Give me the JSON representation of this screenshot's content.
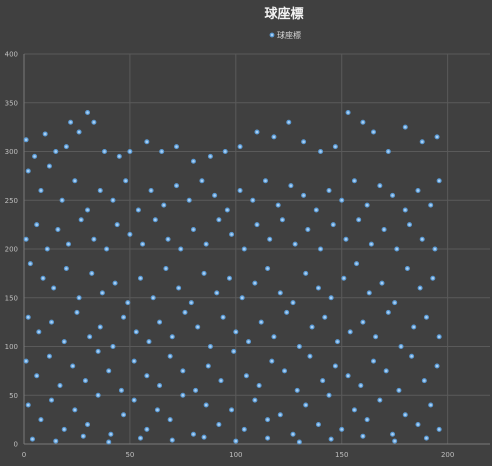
{
  "chart_data": {
    "type": "scatter",
    "title": "球座標",
    "legend": [
      "球座標"
    ],
    "legend_position": "top",
    "xlabel": "",
    "ylabel": "",
    "xlim": [
      0,
      220
    ],
    "ylim": [
      0,
      400
    ],
    "x_ticks": [
      0,
      50,
      100,
      150,
      200
    ],
    "y_ticks": [
      0,
      50,
      100,
      150,
      200,
      250,
      300,
      350,
      400
    ],
    "grid": true,
    "colors": {
      "marker_fill": "#a9d0f5",
      "marker_edge": "#5b9bd5",
      "background": "#404040"
    },
    "series": [
      {
        "name": "球座標",
        "points": [
          [
            1,
            312
          ],
          [
            5,
            295
          ],
          [
            10,
            318
          ],
          [
            15,
            300
          ],
          [
            20,
            305
          ],
          [
            22,
            330
          ],
          [
            26,
            320
          ],
          [
            30,
            340
          ],
          [
            33,
            330
          ],
          [
            38,
            300
          ],
          [
            45,
            295
          ],
          [
            50,
            300
          ],
          [
            58,
            310
          ],
          [
            65,
            300
          ],
          [
            72,
            305
          ],
          [
            80,
            290
          ],
          [
            88,
            295
          ],
          [
            95,
            300
          ],
          [
            102,
            305
          ],
          [
            110,
            320
          ],
          [
            118,
            315
          ],
          [
            125,
            330
          ],
          [
            132,
            310
          ],
          [
            140,
            300
          ],
          [
            147,
            305
          ],
          [
            153,
            340
          ],
          [
            160,
            330
          ],
          [
            165,
            320
          ],
          [
            172,
            300
          ],
          [
            180,
            325
          ],
          [
            188,
            310
          ],
          [
            195,
            315
          ],
          [
            2,
            280
          ],
          [
            8,
            260
          ],
          [
            12,
            285
          ],
          [
            18,
            250
          ],
          [
            24,
            270
          ],
          [
            30,
            240
          ],
          [
            36,
            260
          ],
          [
            42,
            250
          ],
          [
            48,
            270
          ],
          [
            54,
            240
          ],
          [
            60,
            260
          ],
          [
            66,
            245
          ],
          [
            72,
            265
          ],
          [
            78,
            250
          ],
          [
            84,
            270
          ],
          [
            90,
            255
          ],
          [
            96,
            240
          ],
          [
            102,
            260
          ],
          [
            108,
            250
          ],
          [
            114,
            270
          ],
          [
            120,
            245
          ],
          [
            126,
            265
          ],
          [
            132,
            255
          ],
          [
            138,
            240
          ],
          [
            144,
            260
          ],
          [
            150,
            250
          ],
          [
            156,
            270
          ],
          [
            162,
            245
          ],
          [
            168,
            265
          ],
          [
            174,
            255
          ],
          [
            180,
            240
          ],
          [
            186,
            260
          ],
          [
            192,
            245
          ],
          [
            196,
            270
          ],
          [
            1,
            210
          ],
          [
            6,
            225
          ],
          [
            11,
            200
          ],
          [
            16,
            220
          ],
          [
            21,
            205
          ],
          [
            27,
            230
          ],
          [
            33,
            210
          ],
          [
            39,
            200
          ],
          [
            44,
            225
          ],
          [
            50,
            215
          ],
          [
            56,
            205
          ],
          [
            62,
            230
          ],
          [
            68,
            210
          ],
          [
            74,
            200
          ],
          [
            80,
            220
          ],
          [
            86,
            205
          ],
          [
            92,
            230
          ],
          [
            98,
            215
          ],
          [
            104,
            200
          ],
          [
            110,
            225
          ],
          [
            116,
            210
          ],
          [
            122,
            230
          ],
          [
            128,
            205
          ],
          [
            134,
            220
          ],
          [
            140,
            200
          ],
          [
            146,
            225
          ],
          [
            152,
            210
          ],
          [
            158,
            230
          ],
          [
            164,
            205
          ],
          [
            170,
            220
          ],
          [
            176,
            200
          ],
          [
            182,
            225
          ],
          [
            188,
            210
          ],
          [
            194,
            200
          ],
          [
            3,
            185
          ],
          [
            9,
            170
          ],
          [
            14,
            160
          ],
          [
            20,
            180
          ],
          [
            26,
            150
          ],
          [
            32,
            175
          ],
          [
            37,
            155
          ],
          [
            43,
            165
          ],
          [
            49,
            145
          ],
          [
            55,
            170
          ],
          [
            61,
            150
          ],
          [
            67,
            180
          ],
          [
            73,
            160
          ],
          [
            79,
            145
          ],
          [
            85,
            175
          ],
          [
            91,
            155
          ],
          [
            97,
            170
          ],
          [
            103,
            150
          ],
          [
            109,
            165
          ],
          [
            115,
            180
          ],
          [
            121,
            155
          ],
          [
            127,
            145
          ],
          [
            133,
            175
          ],
          [
            139,
            160
          ],
          [
            145,
            150
          ],
          [
            151,
            170
          ],
          [
            157,
            185
          ],
          [
            163,
            155
          ],
          [
            169,
            165
          ],
          [
            175,
            145
          ],
          [
            181,
            180
          ],
          [
            187,
            160
          ],
          [
            193,
            170
          ],
          [
            2,
            130
          ],
          [
            7,
            115
          ],
          [
            13,
            125
          ],
          [
            19,
            105
          ],
          [
            25,
            135
          ],
          [
            31,
            110
          ],
          [
            36,
            120
          ],
          [
            42,
            100
          ],
          [
            47,
            130
          ],
          [
            53,
            115
          ],
          [
            59,
            105
          ],
          [
            64,
            125
          ],
          [
            70,
            110
          ],
          [
            76,
            135
          ],
          [
            82,
            120
          ],
          [
            88,
            100
          ],
          [
            94,
            130
          ],
          [
            100,
            115
          ],
          [
            106,
            105
          ],
          [
            112,
            125
          ],
          [
            118,
            110
          ],
          [
            124,
            135
          ],
          [
            130,
            100
          ],
          [
            136,
            120
          ],
          [
            142,
            130
          ],
          [
            148,
            105
          ],
          [
            154,
            115
          ],
          [
            160,
            125
          ],
          [
            166,
            110
          ],
          [
            172,
            135
          ],
          [
            178,
            100
          ],
          [
            184,
            120
          ],
          [
            190,
            130
          ],
          [
            196,
            110
          ],
          [
            1,
            85
          ],
          [
            6,
            70
          ],
          [
            12,
            90
          ],
          [
            17,
            60
          ],
          [
            23,
            80
          ],
          [
            29,
            65
          ],
          [
            35,
            95
          ],
          [
            40,
            75
          ],
          [
            46,
            55
          ],
          [
            52,
            85
          ],
          [
            58,
            70
          ],
          [
            64,
            60
          ],
          [
            69,
            90
          ],
          [
            75,
            75
          ],
          [
            81,
            55
          ],
          [
            87,
            80
          ],
          [
            93,
            65
          ],
          [
            99,
            95
          ],
          [
            105,
            70
          ],
          [
            111,
            60
          ],
          [
            117,
            85
          ],
          [
            123,
            75
          ],
          [
            129,
            55
          ],
          [
            135,
            90
          ],
          [
            141,
            65
          ],
          [
            147,
            80
          ],
          [
            153,
            70
          ],
          [
            159,
            60
          ],
          [
            165,
            85
          ],
          [
            171,
            75
          ],
          [
            177,
            55
          ],
          [
            183,
            90
          ],
          [
            189,
            65
          ],
          [
            195,
            80
          ],
          [
            2,
            40
          ],
          [
            8,
            25
          ],
          [
            13,
            45
          ],
          [
            19,
            15
          ],
          [
            24,
            35
          ],
          [
            30,
            20
          ],
          [
            35,
            50
          ],
          [
            41,
            10
          ],
          [
            47,
            30
          ],
          [
            52,
            45
          ],
          [
            58,
            15
          ],
          [
            63,
            35
          ],
          [
            69,
            25
          ],
          [
            75,
            50
          ],
          [
            80,
            10
          ],
          [
            86,
            40
          ],
          [
            92,
            20
          ],
          [
            98,
            35
          ],
          [
            104,
            15
          ],
          [
            109,
            45
          ],
          [
            115,
            25
          ],
          [
            121,
            30
          ],
          [
            127,
            10
          ],
          [
            133,
            40
          ],
          [
            139,
            20
          ],
          [
            144,
            50
          ],
          [
            150,
            15
          ],
          [
            156,
            35
          ],
          [
            162,
            25
          ],
          [
            168,
            45
          ],
          [
            174,
            10
          ],
          [
            180,
            30
          ],
          [
            186,
            20
          ],
          [
            192,
            40
          ],
          [
            196,
            15
          ],
          [
            4,
            5
          ],
          [
            15,
            3
          ],
          [
            28,
            8
          ],
          [
            40,
            2
          ],
          [
            55,
            6
          ],
          [
            70,
            4
          ],
          [
            85,
            7
          ],
          [
            100,
            3
          ],
          [
            115,
            6
          ],
          [
            130,
            2
          ],
          [
            145,
            5
          ],
          [
            160,
            8
          ],
          [
            175,
            3
          ],
          [
            190,
            6
          ]
        ]
      }
    ]
  }
}
